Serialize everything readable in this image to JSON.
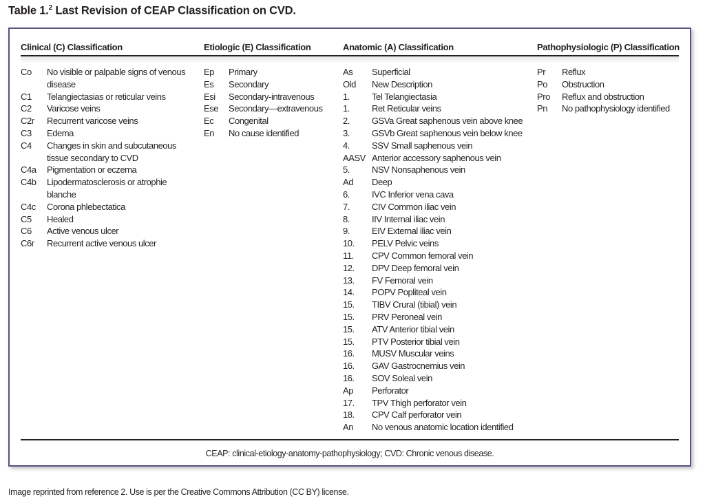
{
  "title": {
    "prefix": "Table 1.",
    "ref": "2",
    "text": " Last Revision of CEAP Classification on CVD."
  },
  "columns": {
    "clinical": {
      "header": "Clinical (C) Classification",
      "rows": [
        {
          "code": "Co",
          "text": "No visible or palpable signs of venous disease"
        },
        {
          "code": "C1",
          "text": "Telangiectasias or reticular veins"
        },
        {
          "code": "C2",
          "text": "Varicose veins"
        },
        {
          "code": "C2r",
          "text": "Recurrent varicose veins"
        },
        {
          "code": "C3",
          "text": "Edema"
        },
        {
          "code": "C4",
          "text": "Changes in skin and subcutaneous tissue secondary to CVD"
        },
        {
          "code": "C4a",
          "text": "Pigmentation or eczema"
        },
        {
          "code": "C4b",
          "text": "Lipodermatosclerosis or atrophie blanche"
        },
        {
          "code": "C4c",
          "text": "Corona phlebectatica"
        },
        {
          "code": "C5",
          "text": "Healed"
        },
        {
          "code": "C6",
          "text": "Active venous ulcer"
        },
        {
          "code": "C6r",
          "text": "Recurrent active venous ulcer"
        }
      ]
    },
    "etiologic": {
      "header": "Etiologic (E) Classification",
      "rows": [
        {
          "code": "Ep",
          "text": "Primary"
        },
        {
          "code": "Es",
          "text": "Secondary"
        },
        {
          "code": "Esi",
          "text": "Secondary-intravenous"
        },
        {
          "code": "Ese",
          "text": "Secondary—extravenous"
        },
        {
          "code": "Ec",
          "text": "Congenital"
        },
        {
          "code": "En",
          "text": "No cause identified"
        }
      ]
    },
    "anatomic": {
      "header": "Anatomic (A) Classification",
      "rows": [
        {
          "code": "As",
          "text": "Superficial"
        },
        {
          "code": "Old",
          "text": "New Description"
        },
        {
          "code": "1.",
          "text": "Tel Telangiectasia"
        },
        {
          "code": "1.",
          "text": "Ret Reticular veins"
        },
        {
          "code": "2.",
          "text": "GSVa Great saphenous vein above knee"
        },
        {
          "code": "3.",
          "text": "GSVb Great saphenous vein below knee"
        },
        {
          "code": "4.",
          "text": "SSV Small saphenous vein"
        },
        {
          "code": "AASV",
          "text": "Anterior accessory saphenous vein"
        },
        {
          "code": "5.",
          "text": "NSV Nonsaphenous vein"
        },
        {
          "code": "Ad",
          "text": "Deep"
        },
        {
          "code": "6.",
          "text": "IVC Inferior vena cava"
        },
        {
          "code": "7.",
          "text": "CIV Common iliac vein"
        },
        {
          "code": "8.",
          "text": "IIV Internal iliac vein"
        },
        {
          "code": "9.",
          "text": "EIV External iliac vein"
        },
        {
          "code": "10.",
          "text": "PELV Pelvic veins"
        },
        {
          "code": "11.",
          "text": "CPV Common femoral vein"
        },
        {
          "code": "12.",
          "text": "DPV Deep femoral vein"
        },
        {
          "code": "13.",
          "text": "FV Femoral vein"
        },
        {
          "code": "14.",
          "text": "POPV Popliteal vein"
        },
        {
          "code": "15.",
          "text": "TIBV Crural (tibial) vein"
        },
        {
          "code": "15.",
          "text": "PRV Peroneal vein"
        },
        {
          "code": "15.",
          "text": "ATV Anterior tibial vein"
        },
        {
          "code": "15.",
          "text": "PTV Posterior tibial vein"
        },
        {
          "code": "16.",
          "text": "MUSV Muscular veins"
        },
        {
          "code": "16.",
          "text": "GAV Gastrocnemius vein"
        },
        {
          "code": "16.",
          "text": "SOV Soleal vein"
        },
        {
          "code": "Ap",
          "text": "Perforator"
        },
        {
          "code": "17.",
          "text": "TPV Thigh perforator vein"
        },
        {
          "code": "18.",
          "text": "CPV Calf perforator vein"
        },
        {
          "code": "An",
          "text": "No venous anatomic location identified"
        }
      ]
    },
    "pathophysiologic": {
      "header": "Pathophysiologic (P) Classification",
      "rows": [
        {
          "code": "Pr",
          "text": "Reflux"
        },
        {
          "code": "Po",
          "text": "Obstruction"
        },
        {
          "code": "Pro",
          "text": "Reflux and obstruction"
        },
        {
          "code": "Pn",
          "text": "No pathophysiology identified"
        }
      ]
    }
  },
  "footnote": "CEAP: clinical-etiology-anatomy-pathophysiology; CVD: Chronic venous disease.",
  "credit": "Image reprinted from reference 2. Use is per the Creative Commons Attribution (CC BY) license.",
  "colors": {
    "border": "#5b5080",
    "text": "#231f20"
  }
}
